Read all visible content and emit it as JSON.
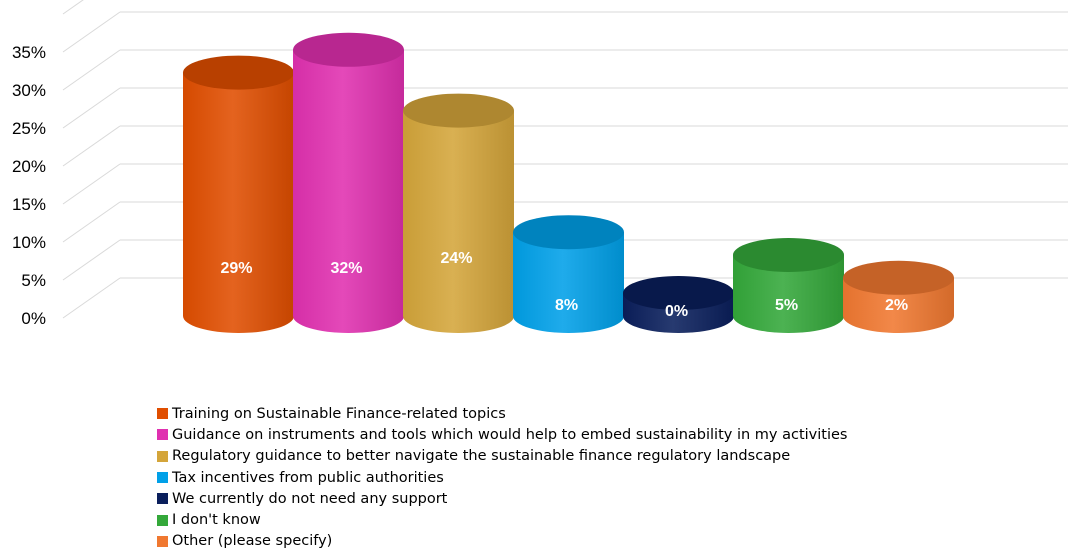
{
  "chart_data": {
    "type": "bar",
    "style": "3d-cylinder",
    "categories": [
      "Training on Sustainable Finance-related topics",
      "Guidance on instruments and tools which would help to embed sustainability in my activities",
      "Regulatory guidance to better navigate the sustainable finance regulatory landscape",
      "Tax incentives from public authorities",
      "We currently do not need any support",
      "I don't know",
      "Other (please specify)"
    ],
    "values": [
      29,
      32,
      24,
      8,
      0,
      5,
      2
    ],
    "data_labels": [
      "29%",
      "32%",
      "24%",
      "8%",
      "0%",
      "5%",
      "2%"
    ],
    "colors": [
      "#E04E00",
      "#E030B0",
      "#D4A53A",
      "#00A0E8",
      "#0A1F5C",
      "#34A83A",
      "#F07830"
    ],
    "y_ticks": [
      0,
      5,
      10,
      15,
      20,
      25,
      30,
      35
    ],
    "y_tick_labels": [
      "0%",
      "5%",
      "10%",
      "15%",
      "20%",
      "25%",
      "30%",
      "35%"
    ],
    "ylim": [
      0,
      35
    ],
    "grid": true,
    "legend_position": "bottom-left",
    "title": "",
    "xlabel": "",
    "ylabel": ""
  }
}
